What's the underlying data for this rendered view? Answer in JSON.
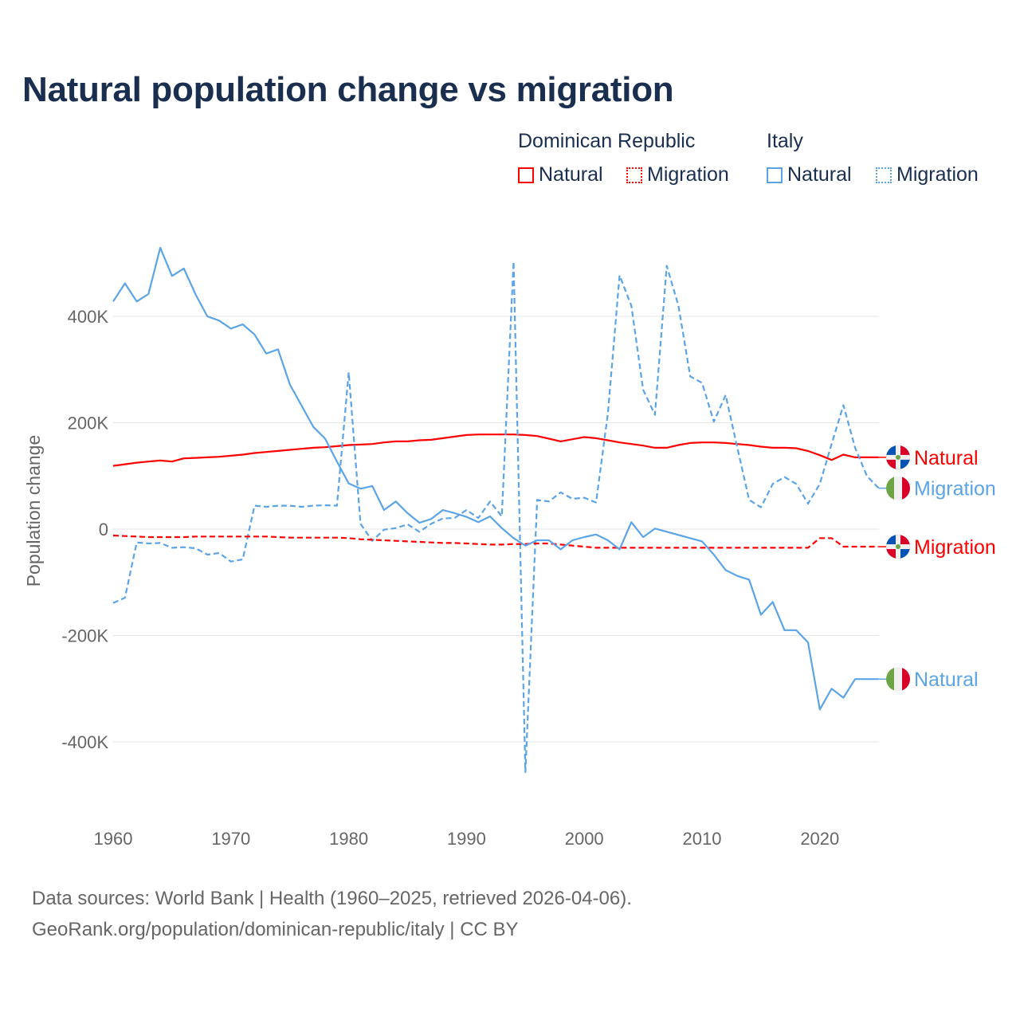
{
  "title": "Natural population change vs migration",
  "legend": {
    "groups": [
      {
        "name": "Dominican Republic",
        "items": [
          {
            "label": "Natural",
            "style": "solid",
            "color": "#ff0000"
          },
          {
            "label": "Migration",
            "style": "dotted",
            "color": "#ff0000"
          }
        ]
      },
      {
        "name": "Italy",
        "items": [
          {
            "label": "Natural",
            "style": "solid",
            "color": "#5ba4e8"
          },
          {
            "label": "Migration",
            "style": "dotted",
            "color": "#5ba4e8"
          }
        ]
      }
    ]
  },
  "footer": {
    "line1": "Data sources: World Bank | Health (1960–2025, retrieved 2026-04-06).",
    "line2": "GeoRank.org/population/dominican-republic/italy | CC BY"
  },
  "chart_data": {
    "type": "line",
    "title": "Natural population change vs migration",
    "xlabel": "",
    "ylabel": "Population change",
    "xlim": [
      1960,
      2025
    ],
    "ylim": [
      -460,
      530
    ],
    "units": "thousands",
    "x_ticks": [
      1960,
      1970,
      1980,
      1990,
      2000,
      2010,
      2020
    ],
    "x_tick_labels": [
      "1960",
      "1970",
      "1980",
      "1990",
      "2000",
      "2010",
      "2020"
    ],
    "y_ticks": [
      400,
      200,
      0,
      -200,
      -400
    ],
    "y_tick_labels": [
      "400K",
      "200K",
      "0",
      "-200K",
      "-400K"
    ],
    "grid": true,
    "legend_position": "top-right",
    "x_start": 1960,
    "series": [
      {
        "name": "Dominican Republic Natural",
        "end_label": "Natural",
        "flag": "dominican-republic",
        "color": "#ff0000",
        "dash": "solid",
        "values": [
          119,
          122,
          125,
          127,
          129,
          127,
          133,
          134,
          135,
          136,
          138,
          140,
          143,
          145,
          147,
          149,
          151,
          153,
          154,
          156,
          158,
          159,
          160,
          163,
          165,
          165,
          167,
          168,
          171,
          174,
          177,
          178,
          178,
          178,
          178,
          177,
          175,
          170,
          165,
          169,
          173,
          171,
          167,
          163,
          160,
          157,
          153,
          153,
          158,
          162,
          163,
          163,
          162,
          160,
          158,
          155,
          153,
          153,
          152,
          147,
          139,
          130,
          140,
          135,
          135,
          135
        ]
      },
      {
        "name": "Italy Migration",
        "end_label": "Migration",
        "flag": "italy",
        "color": "#5ba4e8",
        "dash": "dashed",
        "values": [
          -139,
          -129,
          -25,
          -27,
          -26,
          -35,
          -34,
          -36,
          -48,
          -45,
          -61,
          -57,
          44,
          42,
          44,
          44,
          42,
          44,
          45,
          44,
          295,
          10,
          -22,
          -1,
          2,
          9,
          -5,
          10,
          20,
          21,
          36,
          21,
          52,
          24,
          503,
          -457,
          55,
          52,
          69,
          57,
          59,
          50,
          217,
          477,
          420,
          262,
          215,
          495,
          420,
          287,
          275,
          202,
          252,
          153,
          55,
          41,
          85,
          98,
          85,
          48,
          85,
          160,
          233,
          153,
          100,
          77
        ]
      },
      {
        "name": "Dominican Republic Migration",
        "end_label": "Migration",
        "flag": "dominican-republic",
        "color": "#ff0000",
        "dash": "dashed",
        "values": [
          -12,
          -13,
          -14,
          -15,
          -15,
          -15,
          -15,
          -14,
          -14,
          -14,
          -14,
          -14,
          -14,
          -14,
          -15,
          -16,
          -16,
          -16,
          -16,
          -16,
          -17,
          -19,
          -20,
          -21,
          -22,
          -23,
          -24,
          -25,
          -26,
          -26,
          -27,
          -28,
          -29,
          -29,
          -28,
          -28,
          -27,
          -27,
          -29,
          -31,
          -33,
          -35,
          -35,
          -35,
          -35,
          -35,
          -35,
          -35,
          -35,
          -35,
          -35,
          -35,
          -35,
          -35,
          -35,
          -35,
          -35,
          -35,
          -35,
          -35,
          -17,
          -17,
          -33,
          -33,
          -33,
          -33
        ]
      },
      {
        "name": "Italy Natural",
        "end_label": "Natural",
        "flag": "italy",
        "color": "#5ba4e8",
        "dash": "solid",
        "values": [
          428,
          462,
          428,
          442,
          529,
          476,
          490,
          441,
          400,
          392,
          377,
          385,
          366,
          330,
          338,
          272,
          232,
          192,
          170,
          127,
          86,
          76,
          81,
          36,
          52,
          30,
          12,
          19,
          36,
          30,
          23,
          13,
          24,
          2,
          -17,
          -31,
          -21,
          -21,
          -38,
          -21,
          -15,
          -10,
          -21,
          -38,
          13,
          -15,
          1,
          -5,
          -11,
          -17,
          -23,
          -48,
          -77,
          -88,
          -95,
          -161,
          -137,
          -190,
          -190,
          -213,
          -339,
          -300,
          -317,
          -282,
          -282,
          -282
        ]
      }
    ]
  }
}
